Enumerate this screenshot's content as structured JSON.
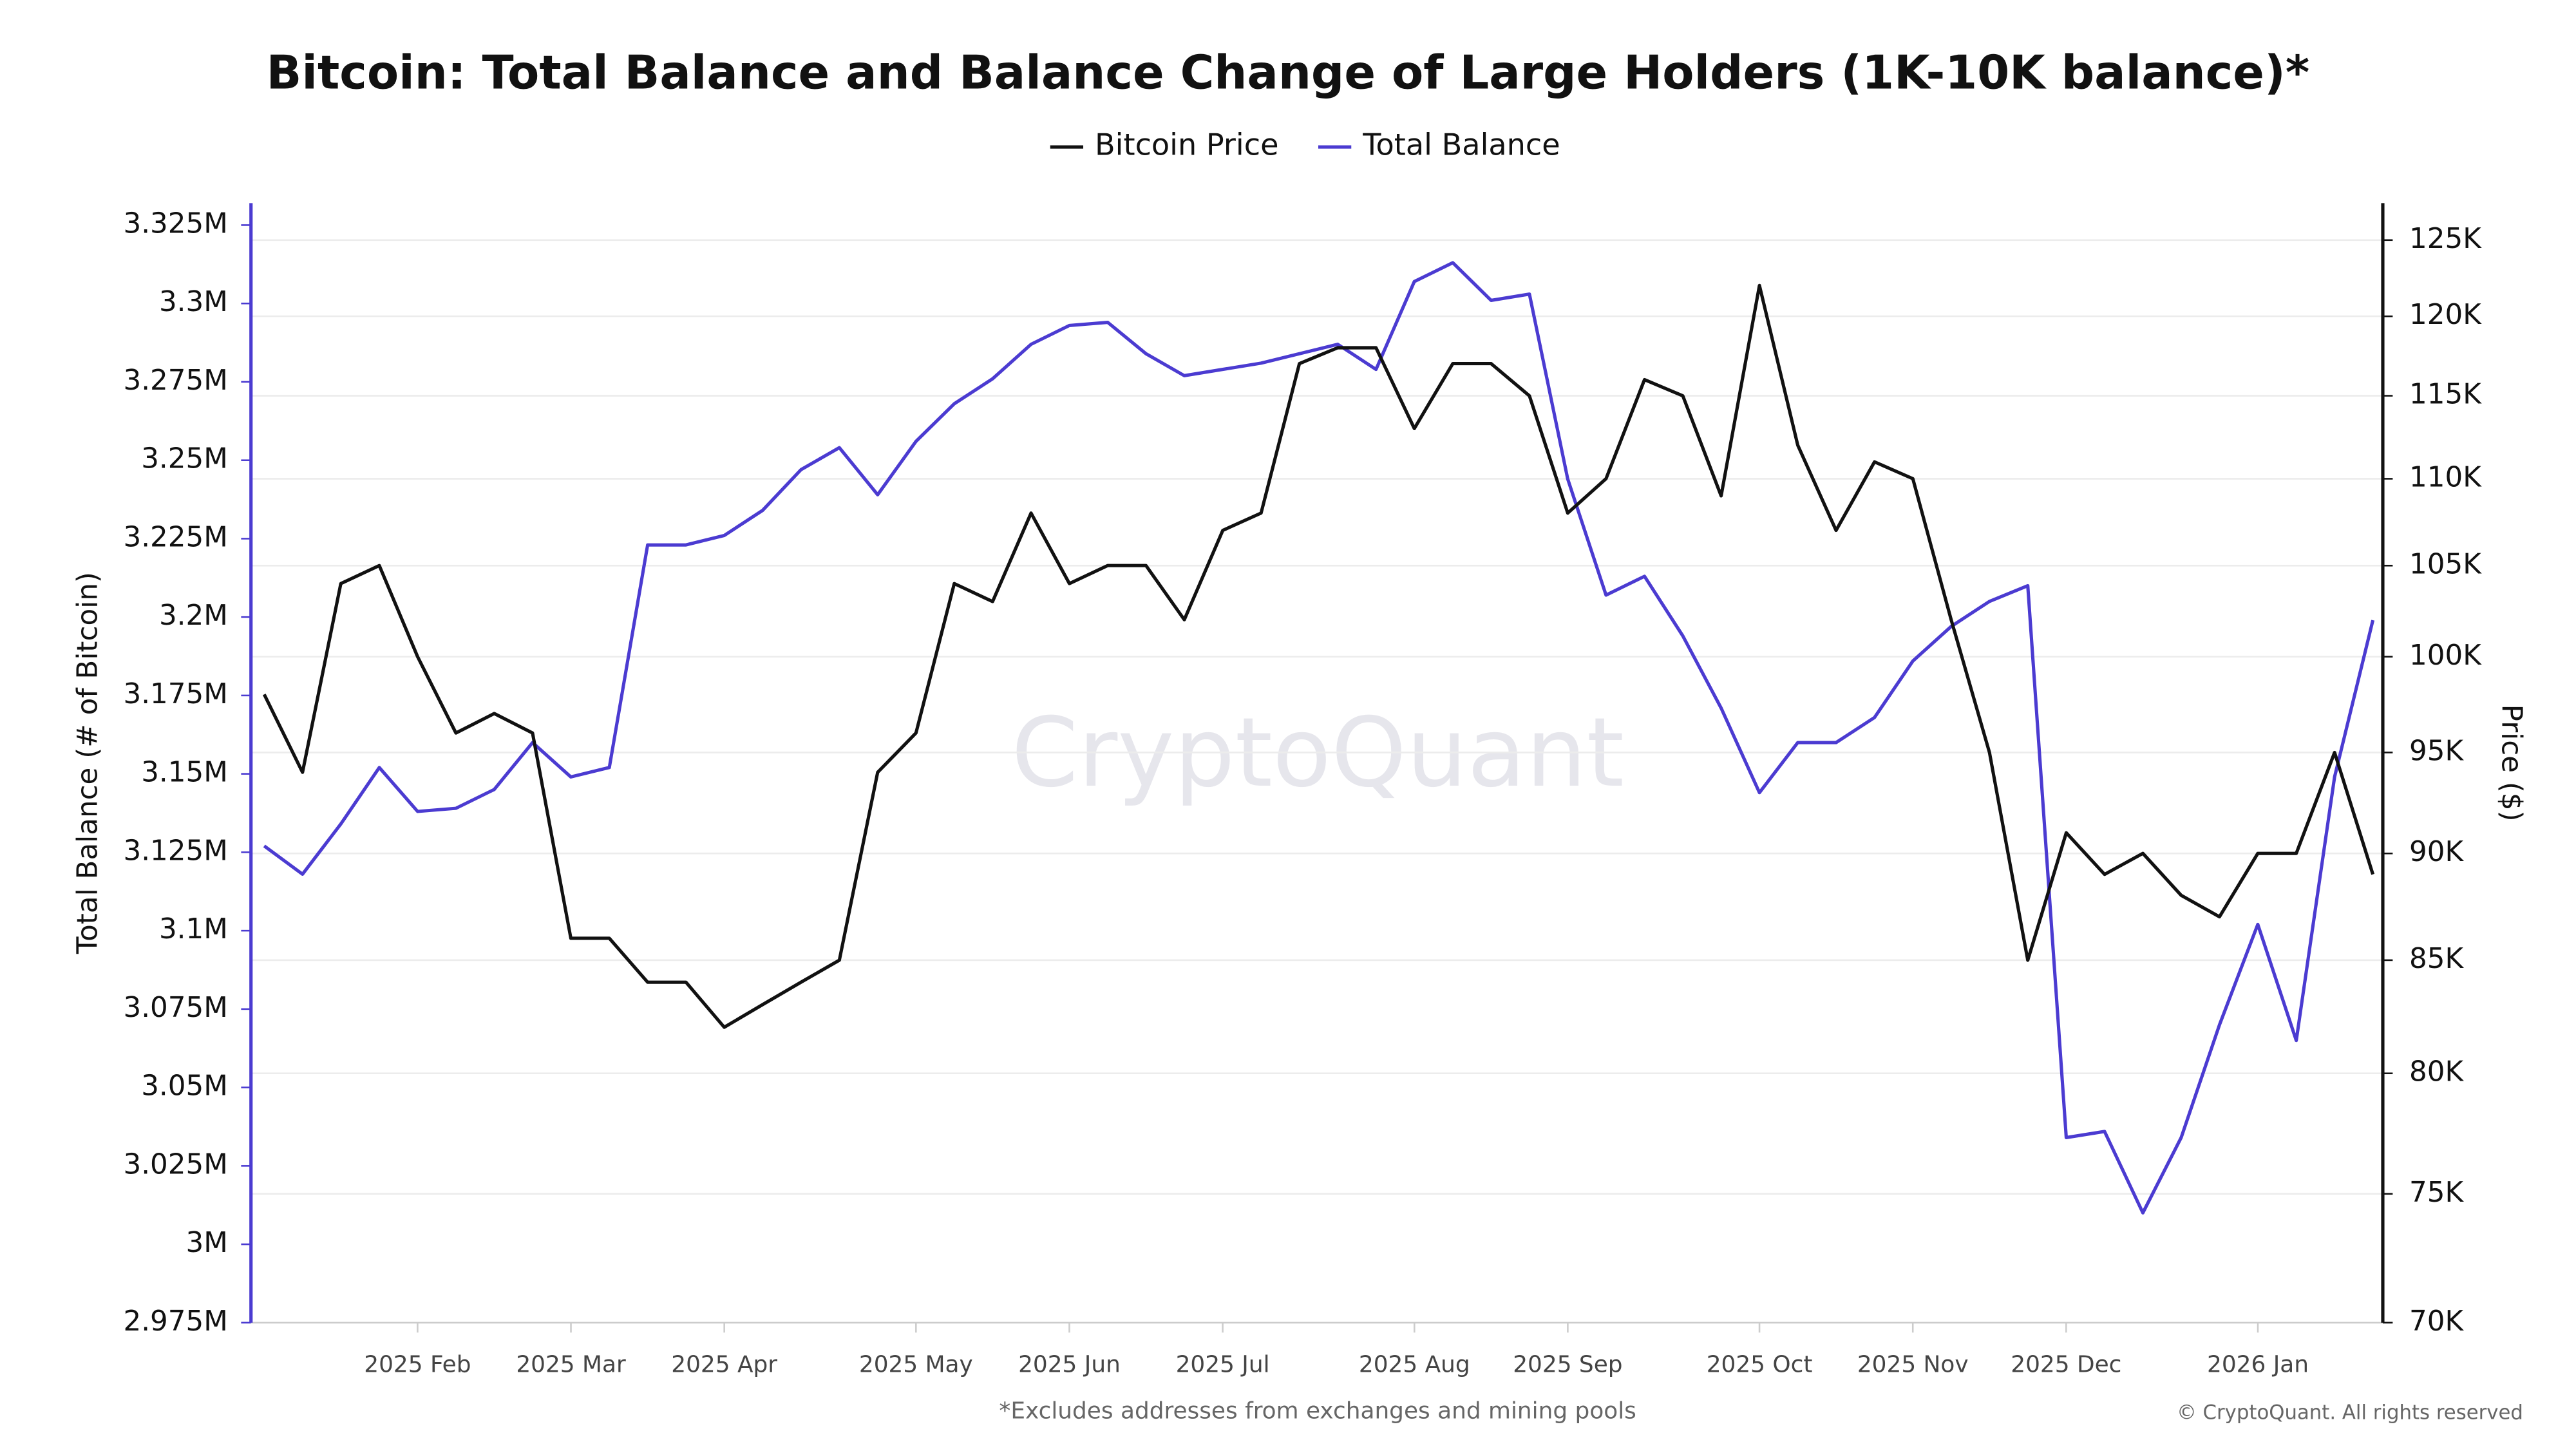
{
  "chart_data": {
    "type": "line",
    "title": "Bitcoin: Total Balance and Balance Change of Large Holders (1K-10K balance)*",
    "footnote": "*Excludes addresses from exchanges and mining pools",
    "copyright": "© CryptoQuant. All rights reserved",
    "watermark": "CryptoQuant",
    "ylabel": "Total Balance (# of Bitcoin)",
    "y2label": "Price ($)",
    "categories": [
      null,
      null,
      null,
      null,
      "2025 Feb",
      null,
      null,
      null,
      "2025 Mar",
      null,
      null,
      null,
      "2025 Apr",
      null,
      null,
      null,
      null,
      "2025 May",
      null,
      null,
      null,
      "2025 Jun",
      null,
      null,
      null,
      "2025 Jul",
      null,
      null,
      null,
      null,
      "2025 Aug",
      null,
      null,
      null,
      "2025 Sep",
      null,
      null,
      null,
      null,
      "2025 Oct",
      null,
      null,
      null,
      "2025 Nov",
      null,
      null,
      null,
      "2025 Dec",
      null,
      null,
      null,
      null,
      "2026 Jan",
      null,
      null,
      null
    ],
    "series": [
      {
        "name": "Bitcoin Price",
        "color": "#111111",
        "axis": "y2",
        "values": [
          98000,
          94000,
          104000,
          105000,
          100000,
          96000,
          97000,
          96000,
          86000,
          86000,
          84000,
          84000,
          82000,
          83000,
          84000,
          85000,
          94000,
          96000,
          104000,
          103000,
          108000,
          104000,
          105000,
          105000,
          102000,
          107000,
          108000,
          117000,
          118000,
          118000,
          113000,
          117000,
          117000,
          115000,
          108000,
          110000,
          116000,
          115000,
          109000,
          122000,
          112000,
          107000,
          111000,
          110000,
          102000,
          95000,
          85000,
          91000,
          89000,
          90000,
          88000,
          87000,
          90000,
          90000,
          95000,
          89000
        ]
      },
      {
        "name": "Total Balance",
        "color": "#4b3bd1",
        "axis": "y",
        "values": [
          3127000,
          3118000,
          3134000,
          3152000,
          3138000,
          3139000,
          3145000,
          3160000,
          3149000,
          3152000,
          3223000,
          3223000,
          3226000,
          3234000,
          3247000,
          3254000,
          3239000,
          3256000,
          3268000,
          3276000,
          3287000,
          3293000,
          3294000,
          3284000,
          3277000,
          3279000,
          3281000,
          3284000,
          3287000,
          3279000,
          3307000,
          3313000,
          3301000,
          3303000,
          3244000,
          3207000,
          3213000,
          3194000,
          3171000,
          3144000,
          3160000,
          3160000,
          3168000,
          3186000,
          3197000,
          3205000,
          3210000,
          3034000,
          3036000,
          3010000,
          3034000,
          3070000,
          3102000,
          3065000,
          3149000,
          3199000
        ]
      }
    ],
    "ylim": [
      2975000,
      3332000
    ],
    "yticks": [
      {
        "value": 2975000,
        "label": "2.975M"
      },
      {
        "value": 3000000,
        "label": "3M"
      },
      {
        "value": 3025000,
        "label": "3.025M"
      },
      {
        "value": 3050000,
        "label": "3.05M"
      },
      {
        "value": 3075000,
        "label": "3.075M"
      },
      {
        "value": 3100000,
        "label": "3.1M"
      },
      {
        "value": 3125000,
        "label": "3.125M"
      },
      {
        "value": 3150000,
        "label": "3.15M"
      },
      {
        "value": 3175000,
        "label": "3.175M"
      },
      {
        "value": 3200000,
        "label": "3.2M"
      },
      {
        "value": 3225000,
        "label": "3.225M"
      },
      {
        "value": 3250000,
        "label": "3.25M"
      },
      {
        "value": 3275000,
        "label": "3.275M"
      },
      {
        "value": 3300000,
        "label": "3.3M"
      },
      {
        "value": 3325000,
        "label": "3.325M"
      }
    ],
    "y2lim": [
      70000,
      127500
    ],
    "y2log": true,
    "y2ticks": [
      {
        "value": 70000,
        "label": "70K"
      },
      {
        "value": 75000,
        "label": "75K"
      },
      {
        "value": 80000,
        "label": "80K"
      },
      {
        "value": 85000,
        "label": "85K"
      },
      {
        "value": 90000,
        "label": "90K"
      },
      {
        "value": 95000,
        "label": "95K"
      },
      {
        "value": 100000,
        "label": "100K"
      },
      {
        "value": 105000,
        "label": "105K"
      },
      {
        "value": 110000,
        "label": "110K"
      },
      {
        "value": 115000,
        "label": "115K"
      },
      {
        "value": 120000,
        "label": "120K"
      },
      {
        "value": 125000,
        "label": "125K"
      }
    ],
    "grid": true,
    "legend": "top"
  }
}
